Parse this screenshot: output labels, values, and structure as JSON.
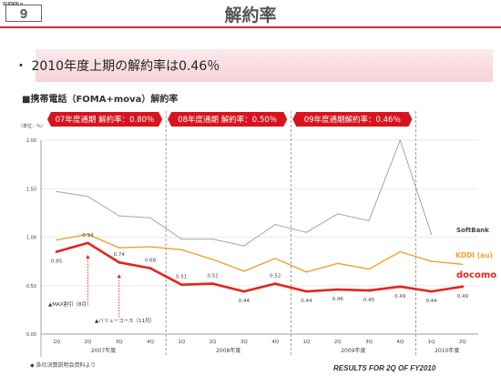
{
  "slide": {
    "label": "SUDEN o.",
    "number": "9"
  },
  "title": "解約率",
  "headline": "・ 2010年度上期の解約率は0.46％",
  "subhead": "■携帯電話（FOMA+mova）解約率",
  "footnote": "◆ 各社決算説明会資料より",
  "footer": "RESULTS FOR 2Q OF FY2010",
  "colors": {
    "docomo": "#e8231b",
    "kddi": "#f5a02e",
    "softbank": "#a6a6a6",
    "accent": "#cf2a36"
  },
  "chart_data": {
    "type": "line",
    "unit_label": "（単位：％）",
    "ylim": [
      0,
      2.0
    ],
    "y_ticks": [
      "0.00",
      "0.50",
      "1.00",
      "1.50",
      "2.00"
    ],
    "x": [
      "1Q",
      "2Q",
      "3Q",
      "4Q",
      "1Q",
      "2Q",
      "3Q",
      "4Q",
      "1Q",
      "2Q",
      "3Q",
      "4Q",
      "1Q",
      "2Q"
    ],
    "year_groups": [
      {
        "label": "2007年度",
        "start": 0,
        "end": 3
      },
      {
        "label": "2008年度",
        "start": 4,
        "end": 7
      },
      {
        "label": "2009年度",
        "start": 8,
        "end": 11
      },
      {
        "label": "2010年度",
        "start": 12,
        "end": 13
      }
    ],
    "banners": [
      {
        "text": "07年度通期 解約率：0.80％",
        "start": 0,
        "end": 3
      },
      {
        "text": "08年度通期 解約率：0.50％",
        "start": 4,
        "end": 7
      },
      {
        "text": "09年度通期解約率：0.46％",
        "start": 8,
        "end": 11
      }
    ],
    "series": [
      {
        "name": "SoftBank",
        "color": "#a6a6a6",
        "values": [
          1.47,
          1.42,
          1.22,
          1.2,
          0.98,
          0.98,
          0.91,
          1.13,
          1.05,
          1.24,
          1.17,
          2.0,
          1.03,
          null
        ]
      },
      {
        "name": "KDDI (au)",
        "color": "#f5a02e",
        "values": [
          0.97,
          1.03,
          0.89,
          0.9,
          0.87,
          0.77,
          0.65,
          0.78,
          0.64,
          0.73,
          0.67,
          0.85,
          0.75,
          0.72
        ]
      },
      {
        "name": "docomo",
        "color": "#e8231b",
        "values": [
          0.85,
          0.94,
          0.74,
          0.68,
          0.51,
          0.52,
          0.44,
          0.52,
          0.44,
          0.46,
          0.45,
          0.49,
          0.44,
          0.49
        ]
      }
    ],
    "data_labels": [
      "0.85",
      "0.94",
      "0.74",
      "0.68",
      "0.51",
      "0.52",
      "0.44",
      "0.52",
      "0.44",
      "0.46",
      "0.45",
      "0.49",
      "0.44",
      "0.49"
    ],
    "annotations": [
      {
        "text": "▲MAX割引（8月）",
        "index": 1
      },
      {
        "text": "▲バリューコース（11月）",
        "index": 2
      }
    ]
  }
}
